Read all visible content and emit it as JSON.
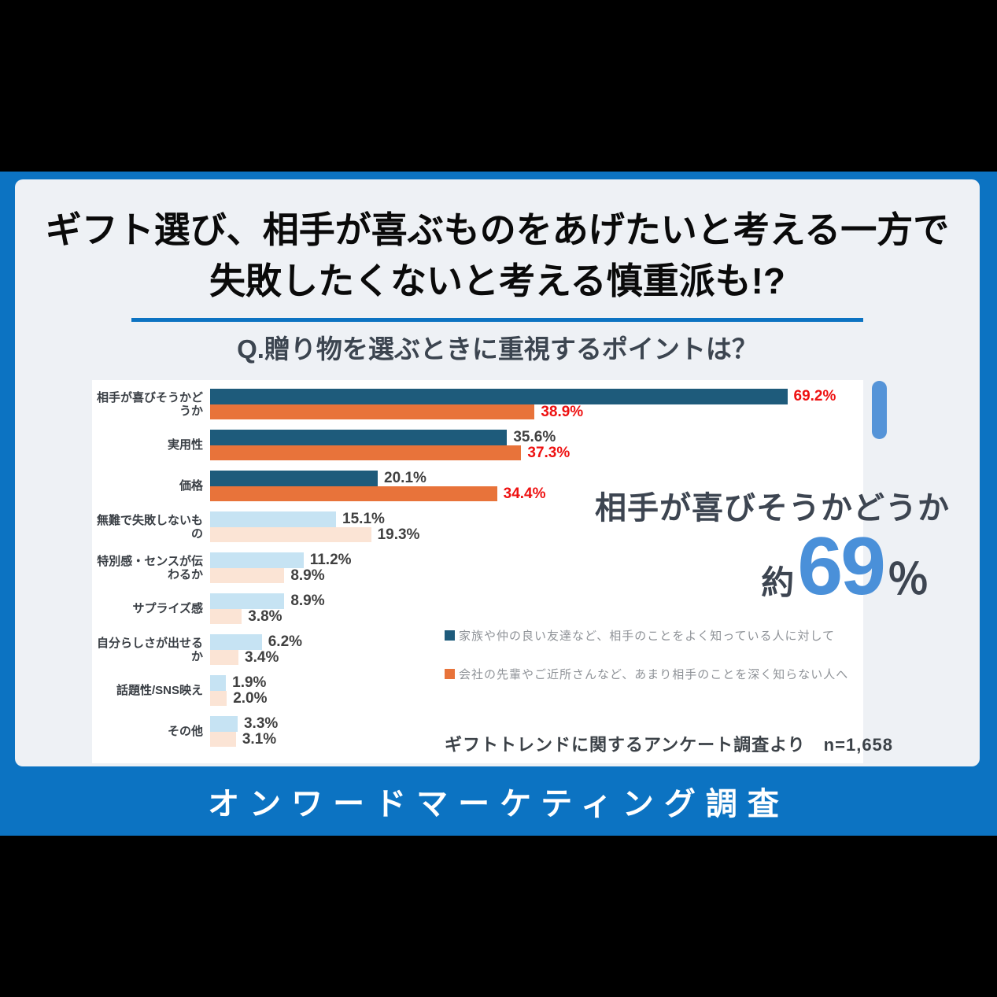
{
  "colors": {
    "brand_blue": "#0c73c2",
    "card_bg": "#eef1f5",
    "red_value": "#ee1111",
    "callout_number": "#4a90d9",
    "pill": "#5594d8"
  },
  "header": {
    "title_line1": "ギフト選び、相手が喜ぶものをあげたいと考える一方で",
    "title_line2": "失敗したくないと考える慎重派も!?",
    "question": "Q.贈り物を選ぶときに重視するポイントは？"
  },
  "callout": {
    "label": "相手が喜びそうかどうか",
    "prefix": "約",
    "number": "69",
    "unit": "％"
  },
  "source_note": "ギフトトレンドに関するアンケート調査より　n=1,658",
  "footer": {
    "label": "オンワードマーケティング調査"
  },
  "chart_data": {
    "type": "bar",
    "orientation": "horizontal",
    "title": "Q.贈り物を選ぶときに重視するポイントは？",
    "categories": [
      "相手が喜びそうかどうか",
      "実用性",
      "価格",
      "無難で失敗しないもの",
      "特別感・センスが伝わるか",
      "サプライズ感",
      "自分らしさが出せるか",
      "話題性/SNS映え",
      "その他"
    ],
    "series": [
      {
        "name": "家族や仲の良い友達など、相手のことをよく知っている人に対して",
        "color": "#1e5b7b",
        "color_muted": "#c6e3f3",
        "values": [
          69.2,
          35.6,
          20.1,
          15.1,
          11.2,
          8.9,
          6.2,
          1.9,
          3.3
        ],
        "red_labels": [
          true,
          false,
          false,
          false,
          false,
          false,
          false,
          false,
          false
        ]
      },
      {
        "name": "会社の先輩やご近所さんなど、あまり相手のことを深く知らない人へ",
        "color": "#e8733a",
        "color_muted": "#fbe4d5",
        "values": [
          38.9,
          37.3,
          34.4,
          19.3,
          8.9,
          3.8,
          3.4,
          2.0,
          3.1
        ],
        "red_labels": [
          true,
          true,
          true,
          false,
          false,
          false,
          false,
          false,
          false
        ]
      }
    ],
    "emphasized_category_count": 3,
    "value_suffix": "%",
    "xlim": [
      0,
      75
    ],
    "grid": false,
    "legend_position": "right-middle"
  }
}
